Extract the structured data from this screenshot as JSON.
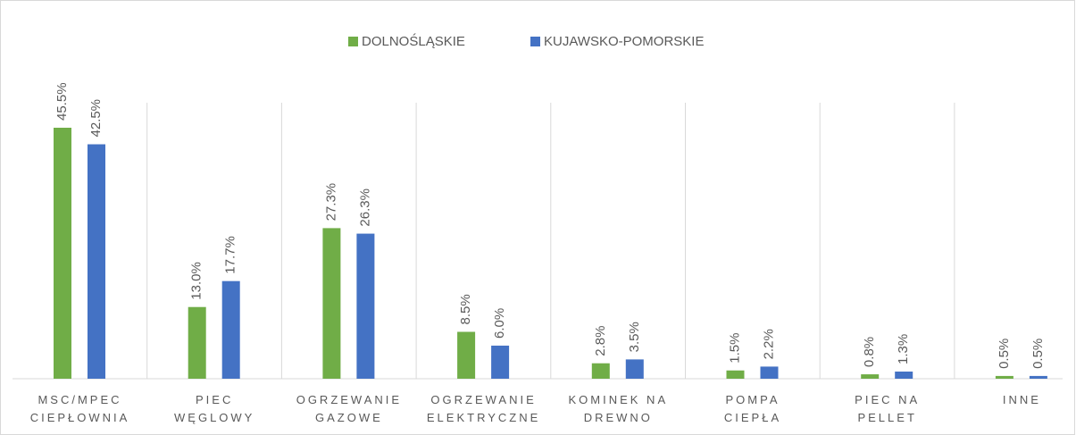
{
  "chart_data": {
    "type": "bar",
    "categories": [
      "MSC/MPEC\nCIEPŁOWNIA",
      "PIEC\nWĘGLOWY",
      "OGRZEWANIE\nGAZOWE",
      "OGRZEWANIE\nELEKTRYCZNE",
      "KOMINEK NA\nDREWNO",
      "POMPA\nCIEPŁA",
      "PIEC NA\nPELLET",
      "INNE"
    ],
    "series": [
      {
        "name": "DOLNOŚLĄSKIE",
        "color": "#70ad47",
        "values": [
          45.5,
          13.0,
          27.3,
          8.5,
          2.8,
          1.5,
          0.8,
          0.5
        ],
        "value_labels": [
          "45.5%",
          "13.0%",
          "27.3%",
          "8.5%",
          "2.8%",
          "1.5%",
          "0.8%",
          "0.5%"
        ]
      },
      {
        "name": "KUJAWSKO-POMORSKIE",
        "color": "#4472c4",
        "values": [
          42.5,
          17.7,
          26.3,
          6.0,
          3.5,
          2.2,
          1.3,
          0.5
        ],
        "value_labels": [
          "42.5%",
          "17.7%",
          "26.3%",
          "6.0%",
          "3.5%",
          "2.2%",
          "1.3%",
          "0.5%"
        ]
      }
    ],
    "legend": "top"
  }
}
